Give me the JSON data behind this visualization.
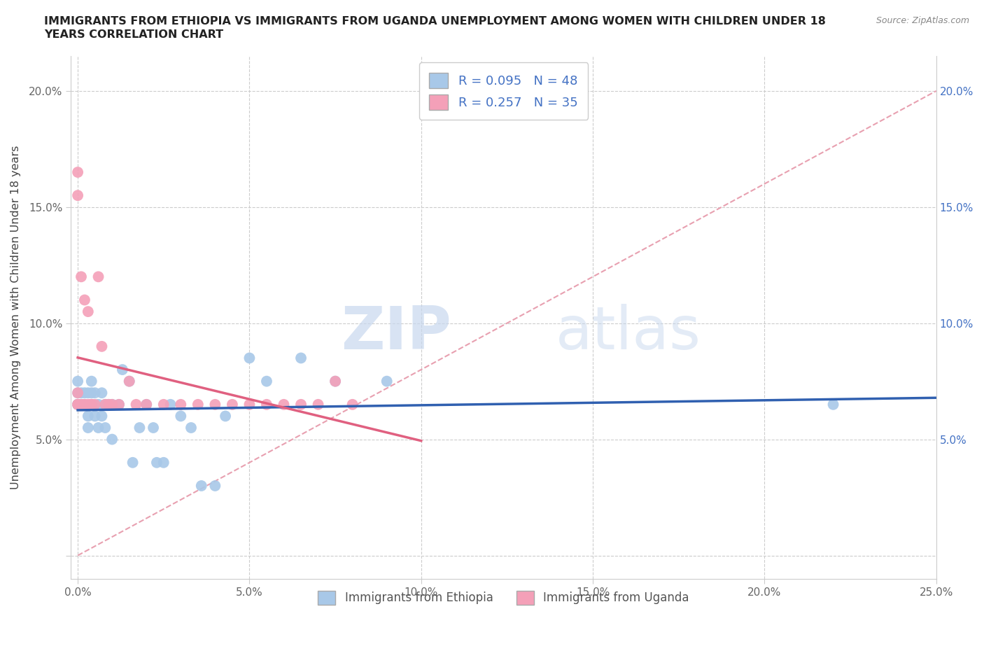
{
  "title_line1": "IMMIGRANTS FROM ETHIOPIA VS IMMIGRANTS FROM UGANDA UNEMPLOYMENT AMONG WOMEN WITH CHILDREN UNDER 18",
  "title_line2": "YEARS CORRELATION CHART",
  "source": "Source: ZipAtlas.com",
  "ylabel": "Unemployment Among Women with Children Under 18 years",
  "xlabel": "",
  "xlim": [
    -0.002,
    0.25
  ],
  "ylim": [
    -0.01,
    0.215
  ],
  "yticks": [
    0.0,
    0.05,
    0.1,
    0.15,
    0.2
  ],
  "xticks": [
    0.0,
    0.05,
    0.1,
    0.15,
    0.2,
    0.25
  ],
  "xtick_labels": [
    "0.0%",
    "5.0%",
    "10.0%",
    "15.0%",
    "20.0%",
    "25.0%"
  ],
  "ytick_labels_left": [
    "",
    "5.0%",
    "10.0%",
    "15.0%",
    "20.0%"
  ],
  "ytick_labels_right": [
    "",
    "5.0%",
    "10.0%",
    "15.0%",
    "20.0%"
  ],
  "color_ethiopia": "#a8c8e8",
  "color_uganda": "#f4a0b8",
  "trend_line_color_ethiopia": "#3060b0",
  "trend_line_color_uganda": "#e06080",
  "ref_line_color": "#e8a0b0",
  "r_ethiopia": 0.095,
  "n_ethiopia": 48,
  "r_uganda": 0.257,
  "n_uganda": 35,
  "legend_label_ethiopia": "Immigrants from Ethiopia",
  "legend_label_uganda": "Immigrants from Uganda",
  "watermark_zip": "ZIP",
  "watermark_atlas": "atlas",
  "ethiopia_x": [
    0.0,
    0.0,
    0.0,
    0.0,
    0.0,
    0.0,
    0.001,
    0.001,
    0.002,
    0.002,
    0.003,
    0.003,
    0.003,
    0.004,
    0.004,
    0.004,
    0.005,
    0.005,
    0.006,
    0.006,
    0.007,
    0.007,
    0.008,
    0.008,
    0.009,
    0.01,
    0.01,
    0.012,
    0.013,
    0.015,
    0.016,
    0.018,
    0.02,
    0.022,
    0.023,
    0.025,
    0.027,
    0.03,
    0.033,
    0.036,
    0.04,
    0.043,
    0.05,
    0.055,
    0.065,
    0.075,
    0.09,
    0.22
  ],
  "ethiopia_y": [
    0.065,
    0.065,
    0.065,
    0.065,
    0.07,
    0.075,
    0.065,
    0.07,
    0.065,
    0.07,
    0.055,
    0.06,
    0.07,
    0.065,
    0.07,
    0.075,
    0.06,
    0.07,
    0.055,
    0.065,
    0.06,
    0.07,
    0.055,
    0.065,
    0.065,
    0.05,
    0.065,
    0.065,
    0.08,
    0.075,
    0.04,
    0.055,
    0.065,
    0.055,
    0.04,
    0.04,
    0.065,
    0.06,
    0.055,
    0.03,
    0.03,
    0.06,
    0.085,
    0.075,
    0.085,
    0.075,
    0.075,
    0.065
  ],
  "uganda_x": [
    0.0,
    0.0,
    0.0,
    0.0,
    0.0,
    0.001,
    0.001,
    0.002,
    0.002,
    0.003,
    0.003,
    0.004,
    0.004,
    0.005,
    0.006,
    0.007,
    0.008,
    0.009,
    0.01,
    0.012,
    0.015,
    0.017,
    0.02,
    0.025,
    0.03,
    0.035,
    0.04,
    0.045,
    0.05,
    0.055,
    0.06,
    0.065,
    0.07,
    0.075,
    0.08
  ],
  "uganda_y": [
    0.155,
    0.165,
    0.07,
    0.065,
    0.065,
    0.12,
    0.065,
    0.11,
    0.065,
    0.105,
    0.065,
    0.065,
    0.065,
    0.065,
    0.12,
    0.09,
    0.065,
    0.065,
    0.065,
    0.065,
    0.075,
    0.065,
    0.065,
    0.065,
    0.065,
    0.065,
    0.065,
    0.065,
    0.065,
    0.065,
    0.065,
    0.065,
    0.065,
    0.075,
    0.065
  ]
}
